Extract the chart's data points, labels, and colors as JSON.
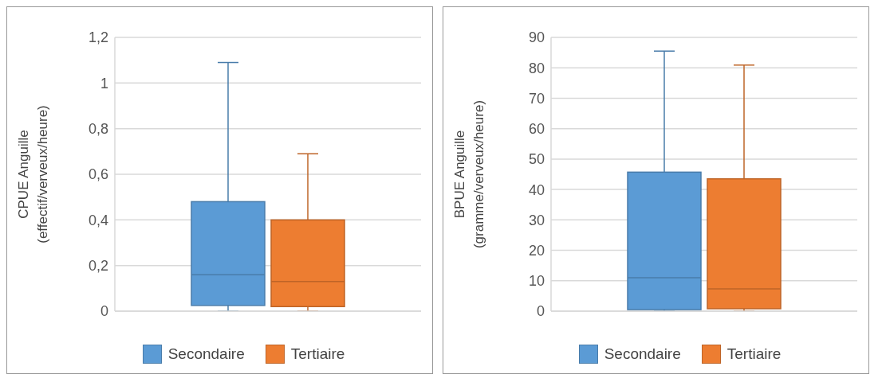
{
  "chart_data": [
    {
      "type": "box",
      "ylabel": "CPUE Anguille\n(effectif/verveux/heure)",
      "categories": [
        null
      ],
      "ylim": [
        0,
        1.2
      ],
      "yticks": [
        0,
        {
          "value": 0.2,
          "label": "0,2"
        },
        {
          "value": 0.4,
          "label": "0,4"
        },
        {
          "value": 0.6,
          "label": "0,6"
        },
        {
          "value": 0.8,
          "label": "0,8"
        },
        1,
        {
          "value": 1.2,
          "label": "1,2"
        }
      ],
      "grid": "y",
      "legend": "bottom",
      "series": [
        {
          "name": "Secondaire",
          "color": "#5b9bd5",
          "boxes": [
            {
              "low": 0,
              "q1": 0.025,
              "median": 0.16,
              "q3": 0.48,
              "high": 1.09
            }
          ]
        },
        {
          "name": "Tertiaire",
          "color": "#ed7d31",
          "boxes": [
            {
              "low": 0,
              "q1": 0.02,
              "median": 0.13,
              "q3": 0.4,
              "high": 0.69
            }
          ]
        }
      ]
    },
    {
      "type": "box",
      "ylabel": "BPUE Anguille\n(gramme/verveux/heure)",
      "categories": [
        null
      ],
      "ylim": [
        0,
        90
      ],
      "yticks": [
        0,
        10,
        20,
        30,
        40,
        50,
        60,
        70,
        80,
        90
      ],
      "grid": "y",
      "legend": "bottom",
      "series": [
        {
          "name": "Secondaire",
          "color": "#5b9bd5",
          "boxes": [
            {
              "low": 0,
              "q1": 0.5,
              "median": 11,
              "q3": 45.7,
              "high": 85.5
            }
          ]
        },
        {
          "name": "Tertiaire",
          "color": "#ed7d31",
          "boxes": [
            {
              "low": 0,
              "q1": 0.8,
              "median": 7.3,
              "q3": 43.5,
              "high": 80.9
            }
          ]
        }
      ]
    }
  ]
}
